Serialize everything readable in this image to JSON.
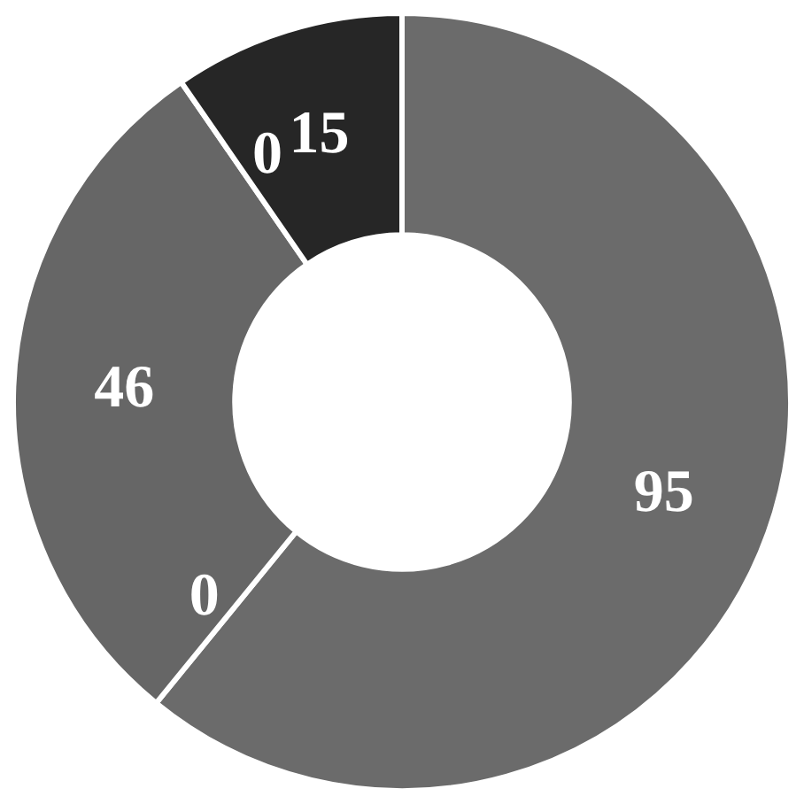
{
  "chart_data": {
    "type": "donut",
    "categories": [
      null,
      null,
      null,
      null,
      null
    ],
    "values": [
      95,
      0,
      46,
      0,
      15
    ],
    "colors": [
      "#6b6b6b",
      "#6b6b6b",
      "#666666",
      "#4a4a4a",
      "#262626"
    ],
    "value_labels": [
      "95",
      "0",
      "46",
      "0",
      "15"
    ]
  }
}
